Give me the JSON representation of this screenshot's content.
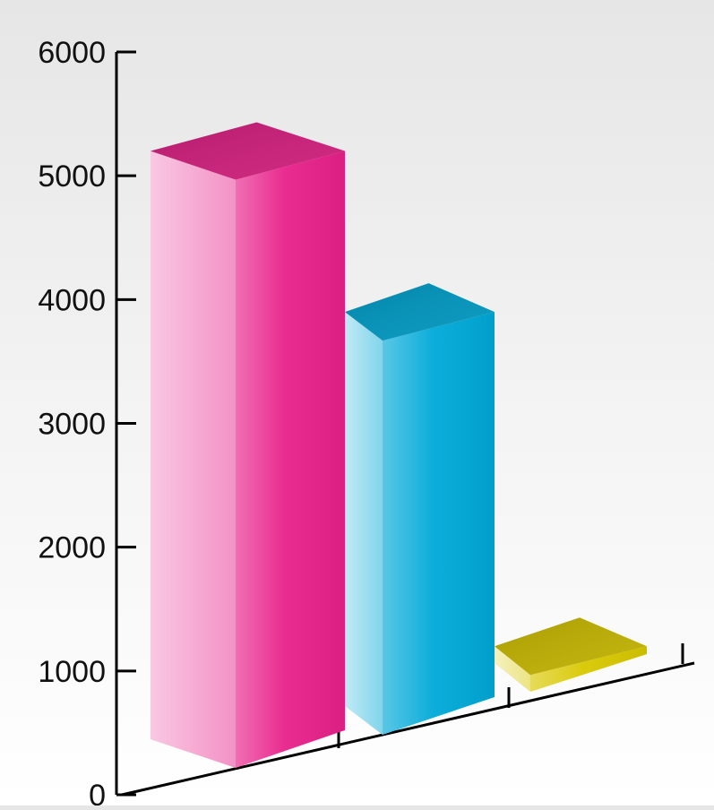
{
  "chart_data": {
    "type": "bar",
    "style": "3d",
    "title": "",
    "xlabel": "",
    "ylabel": "",
    "ylim": [
      0,
      6000
    ],
    "yticks": [
      0,
      1000,
      2000,
      3000,
      4000,
      5000,
      6000
    ],
    "grid": false,
    "categories": [
      "",
      "",
      ""
    ],
    "values": [
      5200,
      3900,
      1200
    ],
    "colors": [
      "#e8218a",
      "#00a9d8",
      "#d9c800"
    ]
  }
}
